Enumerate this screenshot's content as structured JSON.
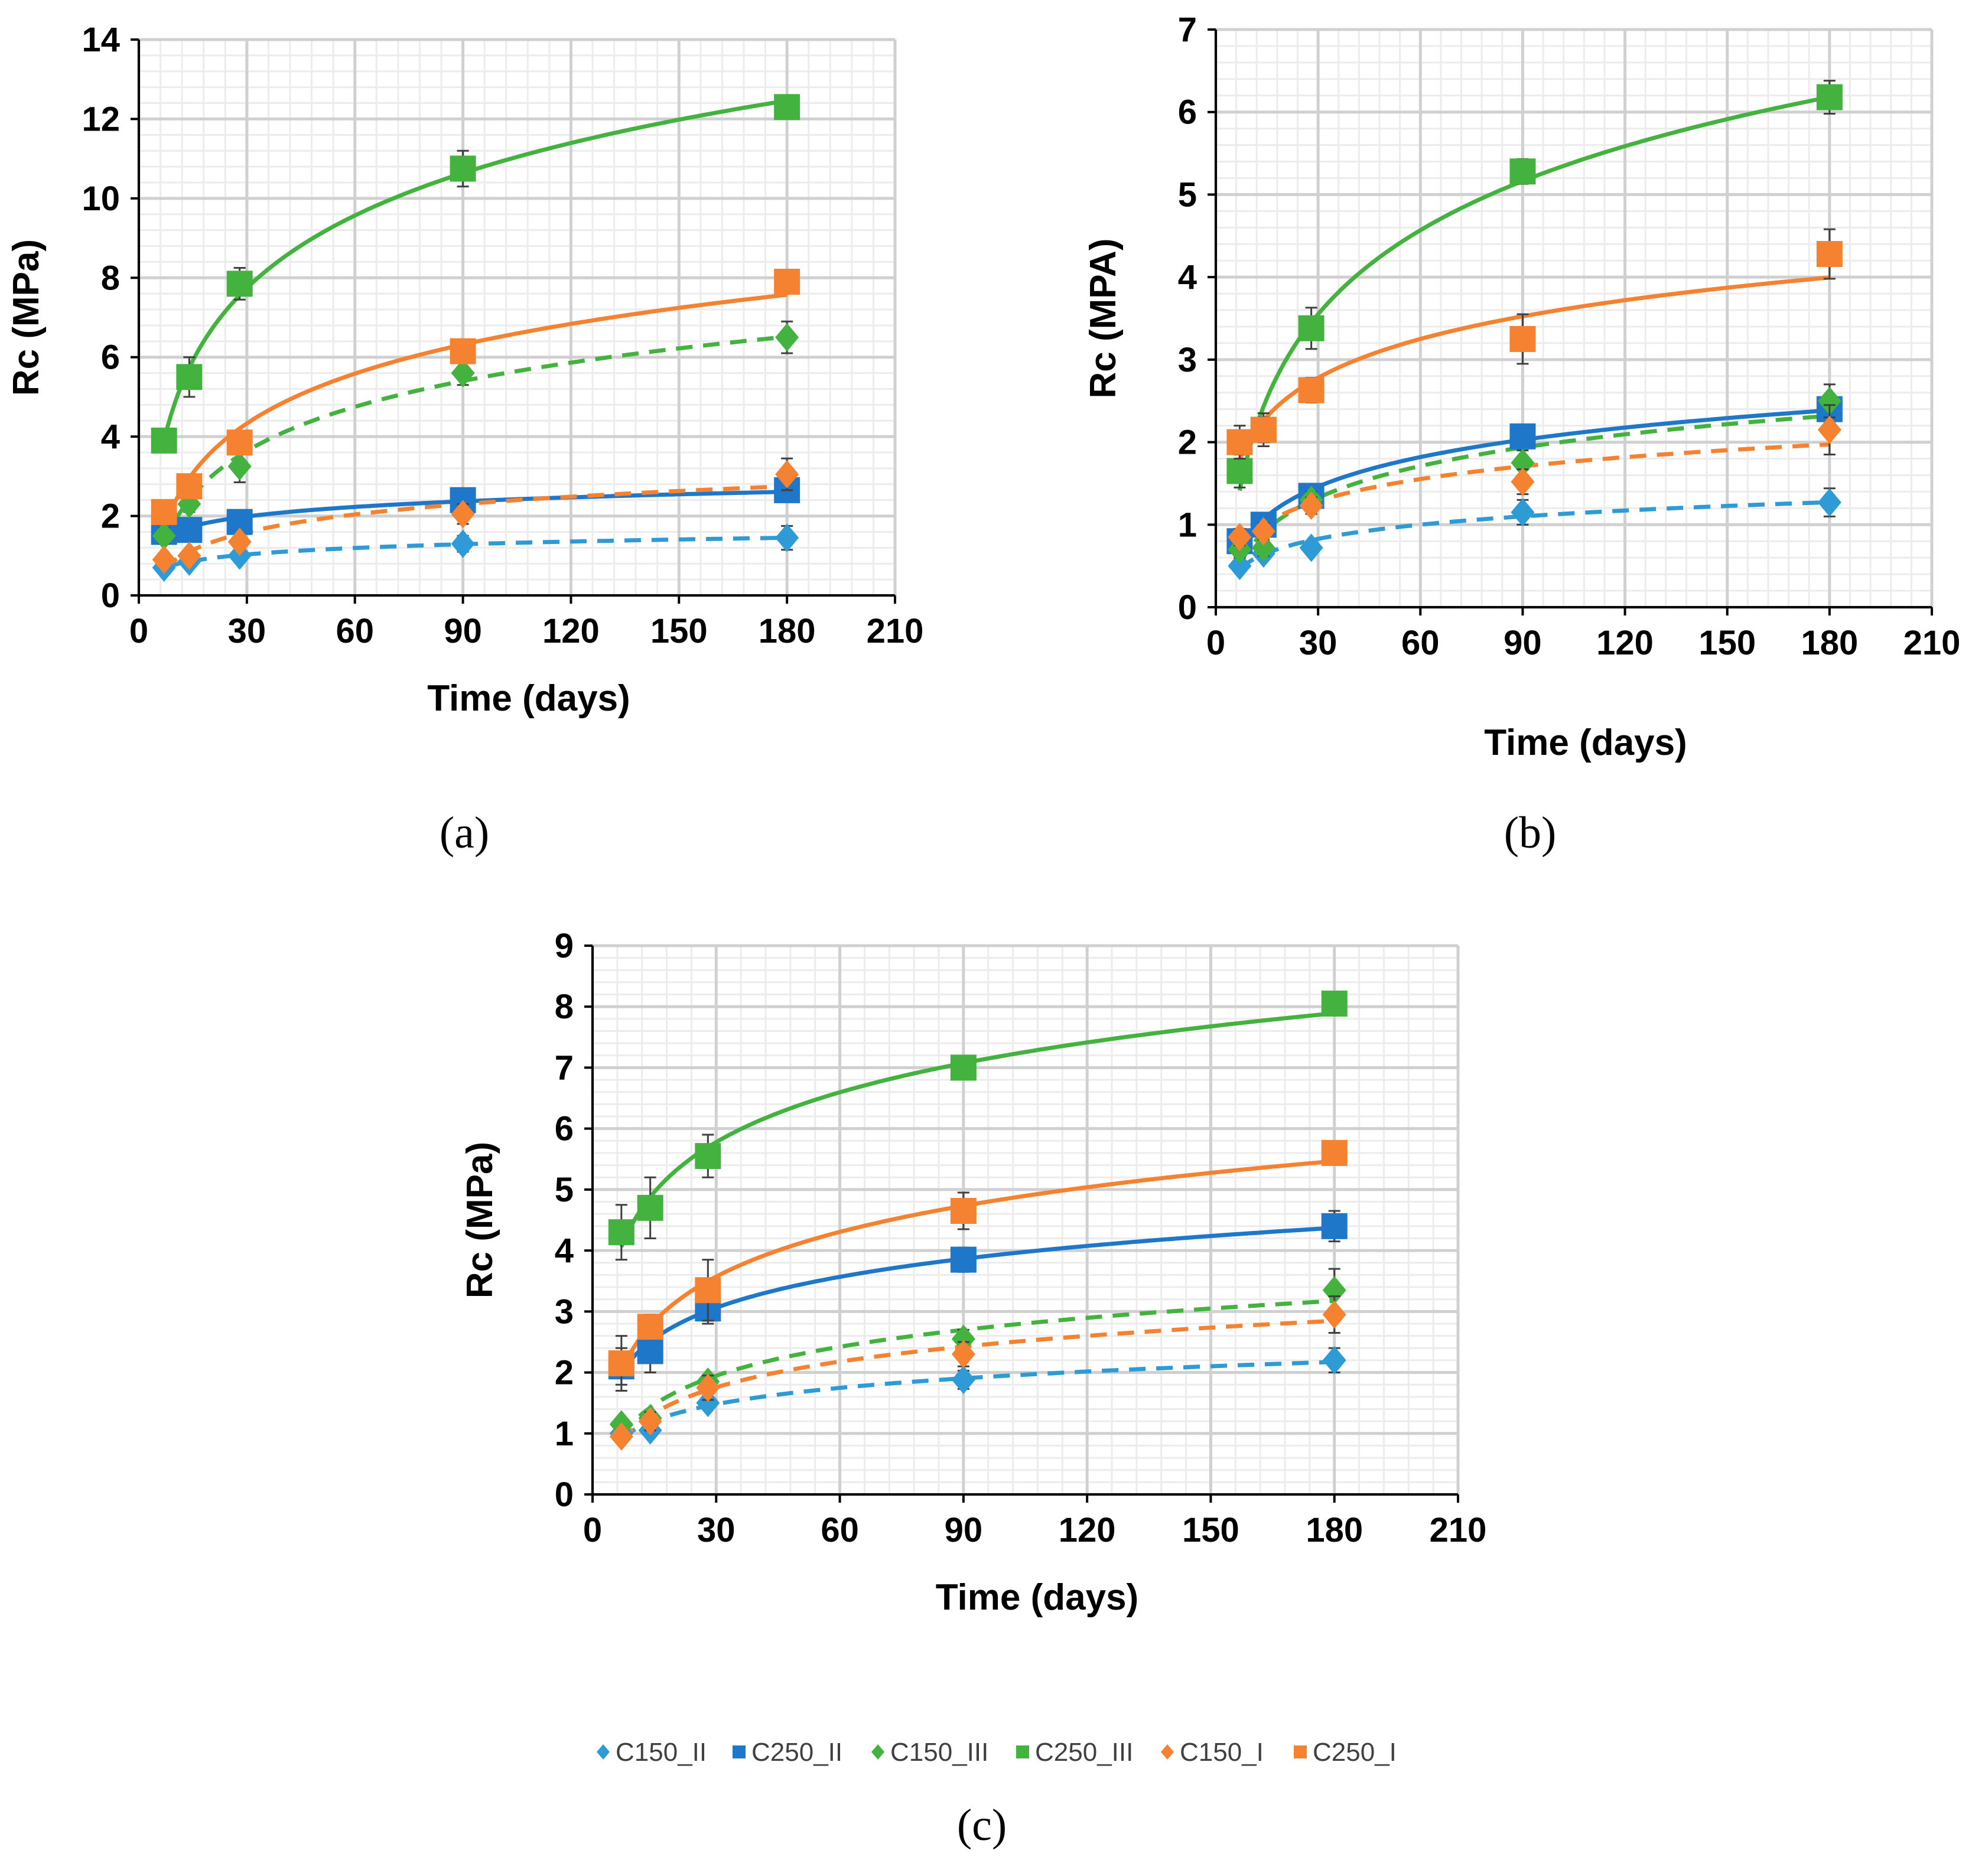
{
  "legend": [
    {
      "key": "C150_II",
      "label": "C150_II",
      "color": "#2E9AD6",
      "marker": "diamond-icon",
      "dashed": true
    },
    {
      "key": "C250_II",
      "label": "C250_II",
      "color": "#1F77C9",
      "marker": "square-icon",
      "dashed": false
    },
    {
      "key": "C150_III",
      "label": "C150_III",
      "color": "#43B23F",
      "marker": "diamond-icon",
      "dashed": true
    },
    {
      "key": "C250_III",
      "label": "C250_III",
      "color": "#43B23F",
      "marker": "square-icon",
      "dashed": false
    },
    {
      "key": "C150_I",
      "label": "C150_I",
      "color": "#F58231",
      "marker": "diamond-icon",
      "dashed": true
    },
    {
      "key": "C250_I",
      "label": "C250_I",
      "color": "#F58231",
      "marker": "square-icon",
      "dashed": false
    }
  ],
  "chart_data": [
    {
      "panel": "(a)",
      "type": "scatter",
      "xlabel": "Time (days)",
      "ylabel": "Rc (MPa)",
      "xlim": [
        0,
        210
      ],
      "ylim": [
        0,
        14
      ],
      "x_ticks": [
        "0",
        "30",
        "60",
        "90",
        "120",
        "150",
        "180",
        "210"
      ],
      "y_ticks": [
        "0",
        "2",
        "4",
        "6",
        "8",
        "10",
        "12",
        "14"
      ],
      "grid": true,
      "x": [
        7,
        14,
        28,
        90,
        180
      ],
      "series": [
        {
          "name": "C150_II",
          "values": [
            0.7,
            0.85,
            1.0,
            1.3,
            1.45
          ],
          "err": [
            0.1,
            0.1,
            0.15,
            0.2,
            0.3
          ]
        },
        {
          "name": "C250_II",
          "values": [
            1.6,
            1.65,
            1.85,
            2.4,
            2.65
          ],
          "err": [
            0.1,
            0.15,
            0.15,
            0.2,
            0.3
          ]
        },
        {
          "name": "C150_III",
          "values": [
            1.5,
            2.3,
            3.25,
            5.6,
            6.5
          ],
          "err": [
            0.2,
            0.2,
            0.4,
            0.3,
            0.4
          ]
        },
        {
          "name": "C250_III",
          "values": [
            3.9,
            5.5,
            7.85,
            10.75,
            12.3
          ],
          "err": [
            0.2,
            0.5,
            0.4,
            0.45,
            0.25
          ]
        },
        {
          "name": "C150_I",
          "values": [
            0.9,
            1.0,
            1.35,
            2.05,
            3.05
          ],
          "err": [
            0.1,
            0.1,
            0.15,
            0.25,
            0.4
          ]
        },
        {
          "name": "C250_I",
          "values": [
            2.1,
            2.75,
            3.85,
            6.15,
            7.9
          ],
          "err": [
            0.2,
            0.2,
            0.25,
            0.25,
            0.3
          ]
        }
      ]
    },
    {
      "panel": "(b)",
      "type": "scatter",
      "xlabel": "Time (days)",
      "ylabel": "Rc (MPA)",
      "xlim": [
        0,
        210
      ],
      "ylim": [
        0,
        7
      ],
      "x_ticks": [
        "0",
        "30",
        "60",
        "90",
        "120",
        "150",
        "180",
        "210"
      ],
      "y_ticks": [
        "0",
        "1",
        "2",
        "3",
        "4",
        "5",
        "6",
        "7"
      ],
      "grid": true,
      "x": [
        7,
        14,
        28,
        90,
        180
      ],
      "series": [
        {
          "name": "C150_II",
          "values": [
            0.5,
            0.65,
            0.72,
            1.15,
            1.27
          ],
          "err": [
            0.05,
            0.05,
            0.08,
            0.15,
            0.17
          ]
        },
        {
          "name": "C250_II",
          "values": [
            0.8,
            1.0,
            1.35,
            2.07,
            2.4
          ],
          "err": [
            0.1,
            0.1,
            0.1,
            0.1,
            0.15
          ]
        },
        {
          "name": "C150_III",
          "values": [
            0.7,
            0.72,
            1.3,
            1.75,
            2.5
          ],
          "err": [
            0.1,
            0.1,
            0.1,
            0.15,
            0.2
          ]
        },
        {
          "name": "C250_III",
          "values": [
            1.65,
            2.15,
            3.38,
            5.28,
            6.18
          ],
          "err": [
            0.2,
            0.2,
            0.25,
            0.15,
            0.2
          ]
        },
        {
          "name": "C150_I",
          "values": [
            0.85,
            0.92,
            1.23,
            1.52,
            2.15
          ],
          "err": [
            0.1,
            0.1,
            0.1,
            0.15,
            0.3
          ]
        },
        {
          "name": "C250_I",
          "values": [
            2.0,
            2.15,
            2.63,
            3.25,
            4.28
          ],
          "err": [
            0.2,
            0.15,
            0.15,
            0.3,
            0.3
          ]
        }
      ]
    },
    {
      "panel": "(c)",
      "type": "scatter",
      "xlabel": "Time (days)",
      "ylabel": "Rc (MPa)",
      "xlim": [
        0,
        210
      ],
      "ylim": [
        0,
        9
      ],
      "x_ticks": [
        "0",
        "30",
        "60",
        "90",
        "120",
        "150",
        "180",
        "210"
      ],
      "y_ticks": [
        "0",
        "1",
        "2",
        "3",
        "4",
        "5",
        "6",
        "7",
        "8",
        "9"
      ],
      "grid": true,
      "x": [
        7,
        14,
        28,
        90,
        180
      ],
      "series": [
        {
          "name": "C150_II",
          "values": [
            1.0,
            1.05,
            1.5,
            1.88,
            2.2
          ],
          "err": [
            0.1,
            0.1,
            0.1,
            0.15,
            0.2
          ]
        },
        {
          "name": "C250_II",
          "values": [
            2.1,
            2.35,
            3.05,
            3.85,
            4.4
          ],
          "err": [
            0.3,
            0.35,
            0.25,
            0.2,
            0.25
          ]
        },
        {
          "name": "C150_III",
          "values": [
            1.15,
            1.25,
            1.85,
            2.55,
            3.35
          ],
          "err": [
            0.1,
            0.1,
            0.1,
            0.15,
            0.35
          ]
        },
        {
          "name": "C250_III",
          "values": [
            4.3,
            4.7,
            5.55,
            7.0,
            8.05
          ],
          "err": [
            0.45,
            0.5,
            0.35,
            0.1,
            0.1
          ]
        },
        {
          "name": "C150_I",
          "values": [
            0.95,
            1.2,
            1.75,
            2.3,
            2.95
          ],
          "err": [
            0.1,
            0.15,
            0.2,
            0.2,
            0.3
          ]
        },
        {
          "name": "C250_I",
          "values": [
            2.15,
            2.75,
            3.35,
            4.65,
            5.6
          ],
          "err": [
            0.45,
            0.2,
            0.5,
            0.3,
            0.1
          ]
        }
      ]
    }
  ]
}
